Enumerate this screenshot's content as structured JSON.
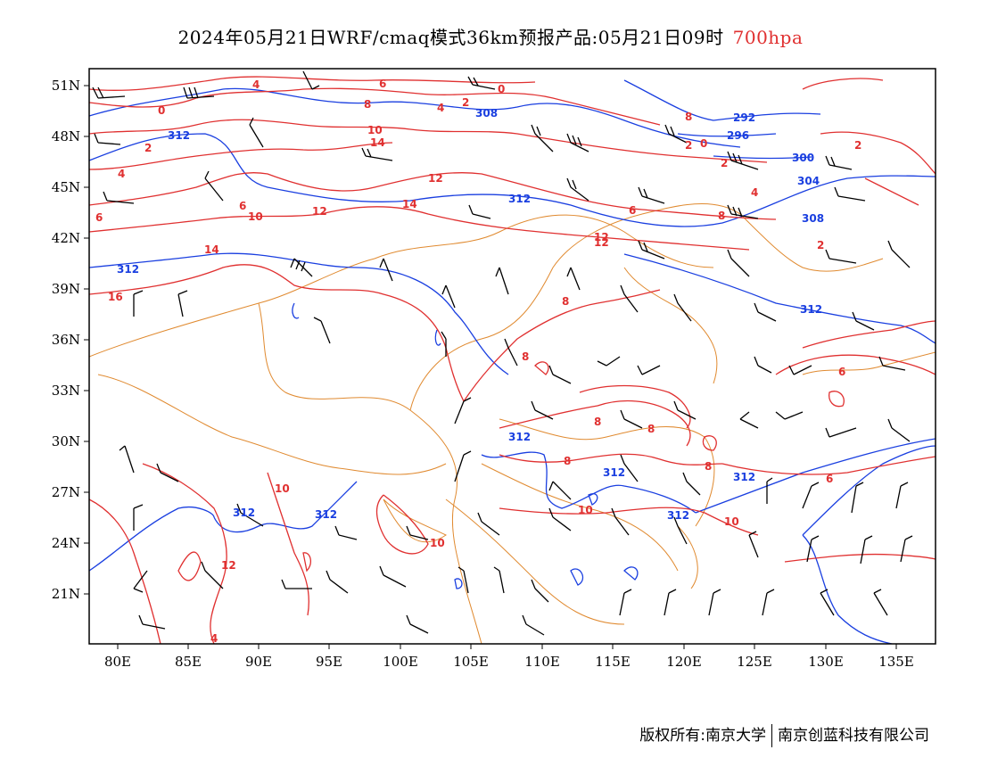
{
  "title": {
    "main": "2024年05月21日WRF/cmaq模式36km预报产品:05月21日09时",
    "level": "700hpa"
  },
  "axes": {
    "lat_labels": [
      "51N",
      "48N",
      "45N",
      "42N",
      "39N",
      "36N",
      "33N",
      "30N",
      "27N",
      "24N",
      "21N"
    ],
    "lon_labels": [
      "80E",
      "85E",
      "90E",
      "95E",
      "100E",
      "105E",
      "110E",
      "115E",
      "120E",
      "125E",
      "130E",
      "135E"
    ]
  },
  "colors": {
    "temperature_contours": "#e03030",
    "height_contours": "#1a3fe0",
    "boundaries": "#e08a30",
    "wind_barbs": "#000000"
  },
  "contour_labels": {
    "temperature": [
      "4",
      "0",
      "2",
      "6",
      "8",
      "10",
      "14",
      "12",
      "2",
      "4",
      "6",
      "8",
      "0",
      "2",
      "2",
      "0",
      "6",
      "4",
      "8",
      "6",
      "2",
      "10",
      "14",
      "12",
      "12",
      "8",
      "8",
      "8",
      "6",
      "8",
      "8",
      "10",
      "12",
      "10",
      "10",
      "16",
      "14",
      "2",
      "4",
      "12",
      "4",
      "6",
      "10",
      "8"
    ],
    "height": [
      "312",
      "308",
      "292",
      "296",
      "300",
      "304",
      "308",
      "312",
      "312",
      "312",
      "312",
      "312",
      "312",
      "312",
      "312",
      "312"
    ]
  },
  "footer": {
    "owner_left": "版权所有:南京大学",
    "owner_right": "南京创蓝科技有限公司"
  }
}
